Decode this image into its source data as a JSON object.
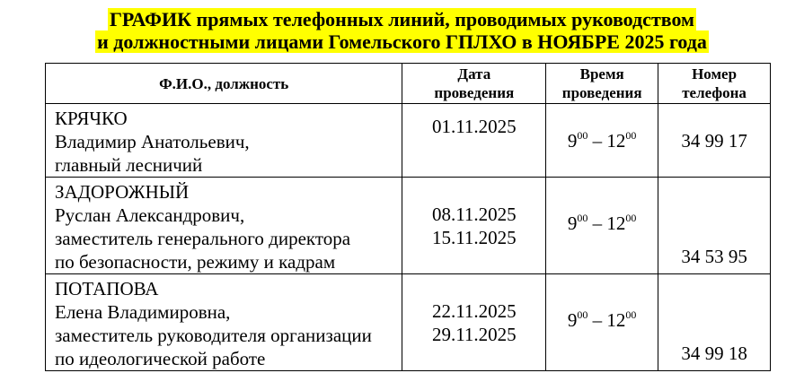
{
  "title": {
    "line1": "ГРАФИК прямых телефонных линий, проводимых руководством",
    "line2": "и должностными лицами Гомельского ГПЛХО в НОЯБРЕ 2025 года",
    "highlight_color": "#ffff00"
  },
  "table": {
    "headers": {
      "fio": "Ф.И.О., должность",
      "date": [
        "Дата",
        "проведения"
      ],
      "time": [
        "Время",
        "проведения"
      ],
      "phone": [
        "Номер",
        "телефона"
      ]
    },
    "rows": [
      {
        "surname": "КРЯЧКО",
        "name": "Владимир Анатольевич,",
        "position": [
          "главный лесничий"
        ],
        "dates": [
          "01.11.2025"
        ],
        "time_from": "9",
        "time_from_min": "00",
        "dash": " – ",
        "time_to": "12",
        "time_to_min": "00",
        "phone": "34 99 17"
      },
      {
        "surname": "ЗАДОРОЖНЫЙ",
        "name": "Руслан Александрович,",
        "position": [
          "заместитель генерального директора",
          "по безопасности, режиму и кадрам"
        ],
        "dates": [
          "08.11.2025",
          "15.11.2025"
        ],
        "time_from": "9",
        "time_from_min": "00",
        "dash": " – ",
        "time_to": "12",
        "time_to_min": "00",
        "phone": "34 53 95"
      },
      {
        "surname": "ПОТАПОВА",
        "name": "Елена Владимировна,",
        "position": [
          "заместитель руководителя организации",
          "по идеологической работе"
        ],
        "dates": [
          "22.11.2025",
          "29.11.2025"
        ],
        "time_from": "9",
        "time_from_min": "00",
        "dash": " – ",
        "time_to": "12",
        "time_to_min": "00",
        "phone": "34 99 18"
      }
    ]
  }
}
